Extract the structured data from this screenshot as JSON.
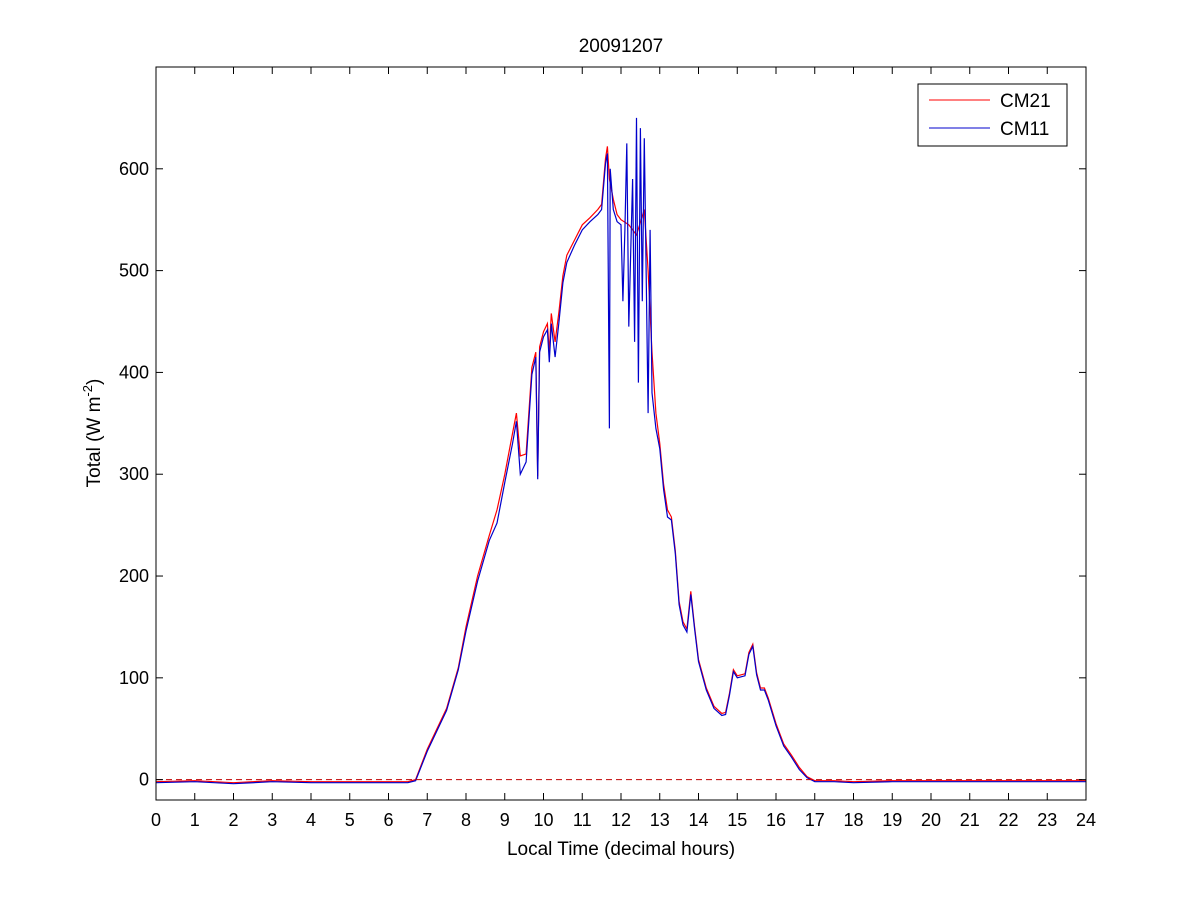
{
  "chart_data": {
    "type": "line",
    "title": "20091207",
    "xlabel": "Local Time (decimal hours)",
    "ylabel": {
      "main": "Total (W m",
      "superscript": "-2",
      "close": ")"
    },
    "xlim": [
      0,
      24
    ],
    "ylim": [
      -20,
      700
    ],
    "xticks": [
      0,
      1,
      2,
      3,
      4,
      5,
      6,
      7,
      8,
      9,
      10,
      11,
      12,
      13,
      14,
      15,
      16,
      17,
      18,
      19,
      20,
      21,
      22,
      23,
      24
    ],
    "yticks": [
      0,
      100,
      200,
      300,
      400,
      500,
      600
    ],
    "grid": false,
    "legend_position": "top-right",
    "reference_line": {
      "y": 0,
      "color": "#c00000",
      "style": "dashed"
    },
    "series": [
      {
        "name": "CM21",
        "color": "#ff0000",
        "points": [
          [
            0,
            -2
          ],
          [
            1,
            -1
          ],
          [
            2,
            -3
          ],
          [
            3,
            -1
          ],
          [
            4,
            -2
          ],
          [
            5,
            -2
          ],
          [
            6,
            -2
          ],
          [
            6.5,
            -2
          ],
          [
            6.7,
            0
          ],
          [
            7,
            30
          ],
          [
            7.5,
            70
          ],
          [
            7.8,
            110
          ],
          [
            8,
            150
          ],
          [
            8.3,
            200
          ],
          [
            8.6,
            240
          ],
          [
            8.8,
            265
          ],
          [
            9,
            300
          ],
          [
            9.2,
            340
          ],
          [
            9.3,
            360
          ],
          [
            9.4,
            318
          ],
          [
            9.55,
            320
          ],
          [
            9.7,
            405
          ],
          [
            9.8,
            420
          ],
          [
            9.85,
            298
          ],
          [
            9.9,
            425
          ],
          [
            10,
            440
          ],
          [
            10.1,
            448
          ],
          [
            10.15,
            420
          ],
          [
            10.2,
            458
          ],
          [
            10.3,
            430
          ],
          [
            10.4,
            460
          ],
          [
            10.5,
            495
          ],
          [
            10.6,
            515
          ],
          [
            10.8,
            530
          ],
          [
            11,
            545
          ],
          [
            11.2,
            552
          ],
          [
            11.4,
            560
          ],
          [
            11.5,
            565
          ],
          [
            11.6,
            610
          ],
          [
            11.65,
            622
          ],
          [
            11.7,
            590
          ],
          [
            11.8,
            570
          ],
          [
            11.9,
            555
          ],
          [
            12,
            550
          ],
          [
            12.2,
            545
          ],
          [
            12.4,
            535
          ],
          [
            12.6,
            560
          ],
          [
            12.7,
            500
          ],
          [
            12.8,
            420
          ],
          [
            12.9,
            360
          ],
          [
            13,
            330
          ],
          [
            13.1,
            290
          ],
          [
            13.2,
            265
          ],
          [
            13.3,
            258
          ],
          [
            13.4,
            225
          ],
          [
            13.5,
            175
          ],
          [
            13.6,
            155
          ],
          [
            13.7,
            148
          ],
          [
            13.8,
            185
          ],
          [
            13.9,
            150
          ],
          [
            14,
            118
          ],
          [
            14.2,
            90
          ],
          [
            14.4,
            72
          ],
          [
            14.6,
            65
          ],
          [
            14.7,
            66
          ],
          [
            14.8,
            85
          ],
          [
            14.9,
            108
          ],
          [
            15,
            102
          ],
          [
            15.2,
            104
          ],
          [
            15.3,
            125
          ],
          [
            15.4,
            133
          ],
          [
            15.5,
            105
          ],
          [
            15.6,
            90
          ],
          [
            15.7,
            90
          ],
          [
            15.8,
            80
          ],
          [
            16,
            55
          ],
          [
            16.2,
            35
          ],
          [
            16.4,
            24
          ],
          [
            16.6,
            12
          ],
          [
            16.8,
            3
          ],
          [
            17,
            -1
          ],
          [
            17.5,
            -1
          ],
          [
            18,
            -2
          ],
          [
            19,
            -1
          ],
          [
            20,
            -1
          ],
          [
            21,
            -1
          ],
          [
            22,
            -1
          ],
          [
            23,
            -1
          ],
          [
            24,
            -1
          ]
        ]
      },
      {
        "name": "CM11",
        "color": "#0000cc",
        "points": [
          [
            0,
            -3
          ],
          [
            1,
            -2
          ],
          [
            2,
            -4
          ],
          [
            3,
            -2
          ],
          [
            4,
            -3
          ],
          [
            5,
            -3
          ],
          [
            6,
            -3
          ],
          [
            6.5,
            -3
          ],
          [
            6.7,
            -1
          ],
          [
            7,
            28
          ],
          [
            7.5,
            68
          ],
          [
            7.8,
            108
          ],
          [
            8,
            146
          ],
          [
            8.3,
            195
          ],
          [
            8.6,
            235
          ],
          [
            8.8,
            252
          ],
          [
            9,
            292
          ],
          [
            9.2,
            330
          ],
          [
            9.3,
            352
          ],
          [
            9.4,
            300
          ],
          [
            9.55,
            312
          ],
          [
            9.7,
            398
          ],
          [
            9.8,
            415
          ],
          [
            9.85,
            295
          ],
          [
            9.9,
            420
          ],
          [
            10,
            435
          ],
          [
            10.1,
            442
          ],
          [
            10.15,
            410
          ],
          [
            10.2,
            448
          ],
          [
            10.3,
            415
          ],
          [
            10.4,
            450
          ],
          [
            10.5,
            488
          ],
          [
            10.6,
            508
          ],
          [
            10.8,
            525
          ],
          [
            11,
            540
          ],
          [
            11.2,
            548
          ],
          [
            11.4,
            555
          ],
          [
            11.5,
            560
          ],
          [
            11.6,
            605
          ],
          [
            11.65,
            615
          ],
          [
            11.7,
            345
          ],
          [
            11.72,
            600
          ],
          [
            11.8,
            560
          ],
          [
            11.9,
            548
          ],
          [
            12,
            545
          ],
          [
            12.05,
            470
          ],
          [
            12.1,
            540
          ],
          [
            12.15,
            625
          ],
          [
            12.2,
            445
          ],
          [
            12.3,
            590
          ],
          [
            12.35,
            430
          ],
          [
            12.4,
            650
          ],
          [
            12.45,
            390
          ],
          [
            12.5,
            640
          ],
          [
            12.55,
            470
          ],
          [
            12.6,
            630
          ],
          [
            12.7,
            360
          ],
          [
            12.75,
            540
          ],
          [
            12.8,
            380
          ],
          [
            12.9,
            345
          ],
          [
            13,
            325
          ],
          [
            13.1,
            285
          ],
          [
            13.2,
            258
          ],
          [
            13.3,
            255
          ],
          [
            13.4,
            222
          ],
          [
            13.5,
            172
          ],
          [
            13.6,
            152
          ],
          [
            13.7,
            145
          ],
          [
            13.8,
            182
          ],
          [
            13.9,
            148
          ],
          [
            14,
            116
          ],
          [
            14.2,
            88
          ],
          [
            14.4,
            70
          ],
          [
            14.6,
            63
          ],
          [
            14.7,
            64
          ],
          [
            14.8,
            83
          ],
          [
            14.9,
            106
          ],
          [
            15,
            100
          ],
          [
            15.2,
            102
          ],
          [
            15.3,
            123
          ],
          [
            15.4,
            131
          ],
          [
            15.5,
            103
          ],
          [
            15.6,
            88
          ],
          [
            15.7,
            88
          ],
          [
            15.8,
            78
          ],
          [
            16,
            53
          ],
          [
            16.2,
            33
          ],
          [
            16.4,
            22
          ],
          [
            16.6,
            10
          ],
          [
            16.8,
            2
          ],
          [
            17,
            -2
          ],
          [
            17.5,
            -2
          ],
          [
            18,
            -3
          ],
          [
            19,
            -2
          ],
          [
            20,
            -2
          ],
          [
            21,
            -2
          ],
          [
            22,
            -2
          ],
          [
            23,
            -2
          ],
          [
            24,
            -2
          ]
        ]
      }
    ]
  }
}
